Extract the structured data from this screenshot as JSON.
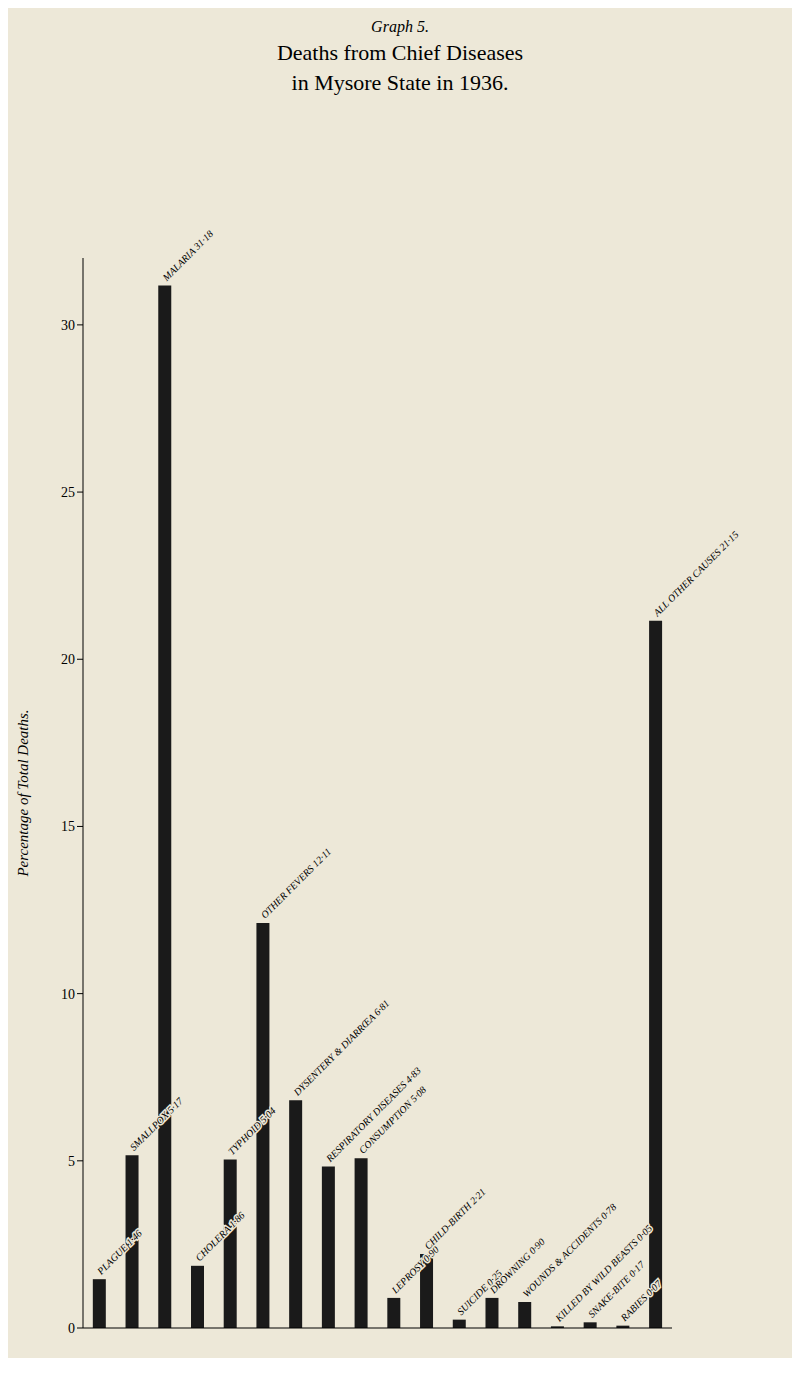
{
  "chart_data": {
    "type": "bar",
    "title": "Graph 5.",
    "subtitle": [
      "Deaths from Chief Diseases",
      "in Mysore State in 1936."
    ],
    "y_label": "Percentage of Total Deaths.",
    "categories": [
      "PLAGUE 1·46",
      "SMALLPOX 5·17",
      "MALARIA 31·18",
      "CHOLERA 1·86",
      "TYPHOID 5·04",
      "OTHER FEVERS 12·11",
      "DYSENTERY & DIARRŒA 6·81",
      "RESPIRATORY DISEASES 4·83",
      "CONSUMPTION 5·08",
      "LEPROSY 0·90",
      "CHILD-BIRTH 2·21",
      "SUICIDE 0·25",
      "DROWNING 0·90",
      "WOUNDS & ACCIDENTS 0·78",
      "KILLED BY WILD BEASTS 0·05",
      "SNAKE-BITE 0·17",
      "RABIES 0·07",
      "ALL OTHER CAUSES 21·15"
    ],
    "values": [
      1.46,
      5.17,
      31.18,
      1.86,
      5.04,
      12.11,
      6.81,
      4.83,
      5.08,
      0.9,
      2.21,
      0.25,
      0.9,
      0.78,
      0.05,
      0.17,
      0.07,
      21.15
    ],
    "color": "#1a1a1a",
    "ylim": [
      0,
      32
    ],
    "yticks": [
      0,
      5,
      10,
      15,
      20,
      25,
      30
    ],
    "grid": false,
    "tick_labels": "y"
  }
}
